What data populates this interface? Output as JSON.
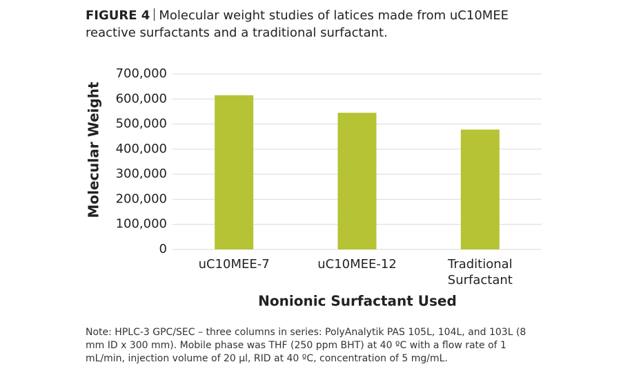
{
  "chart_data": {
    "type": "bar",
    "figure_label": "FIGURE 4",
    "title": "Molecular weight studies of latices made from uC10MEE reactive surfactants and a traditional surfactant.",
    "y_label": "Molecular Weight",
    "x_label": "Nonionic Surfactant Used",
    "categories": [
      "uC10MEE-7",
      "uC10MEE-12",
      "Traditional Surfactant"
    ],
    "values": [
      615000,
      545000,
      478000
    ],
    "color": "#b5c334",
    "ylim": [
      0,
      700000
    ],
    "yticks": [
      0,
      {
        "value": 100000,
        "label": "100,000"
      },
      {
        "value": 200000,
        "label": "200,000"
      },
      {
        "value": 300000,
        "label": "300,000"
      },
      {
        "value": 400000,
        "label": "400,000"
      },
      {
        "value": 500000,
        "label": "500,000"
      },
      {
        "value": 600000,
        "label": "600,000"
      },
      {
        "value": 700000,
        "label": "700,000"
      }
    ],
    "grid": true,
    "note": "Note: HPLC-3 GPC/SEC – three columns in series: PolyAnalytik PAS 105L, 104L, and 103L (8 mm ID x 300 mm). Mobile phase was THF (250 ppm BHT) at 40 ºC with a flow rate of 1 mL/min, injection volume of 20 µl, RID at 40 ºC, concentration of 5 mg/mL."
  }
}
